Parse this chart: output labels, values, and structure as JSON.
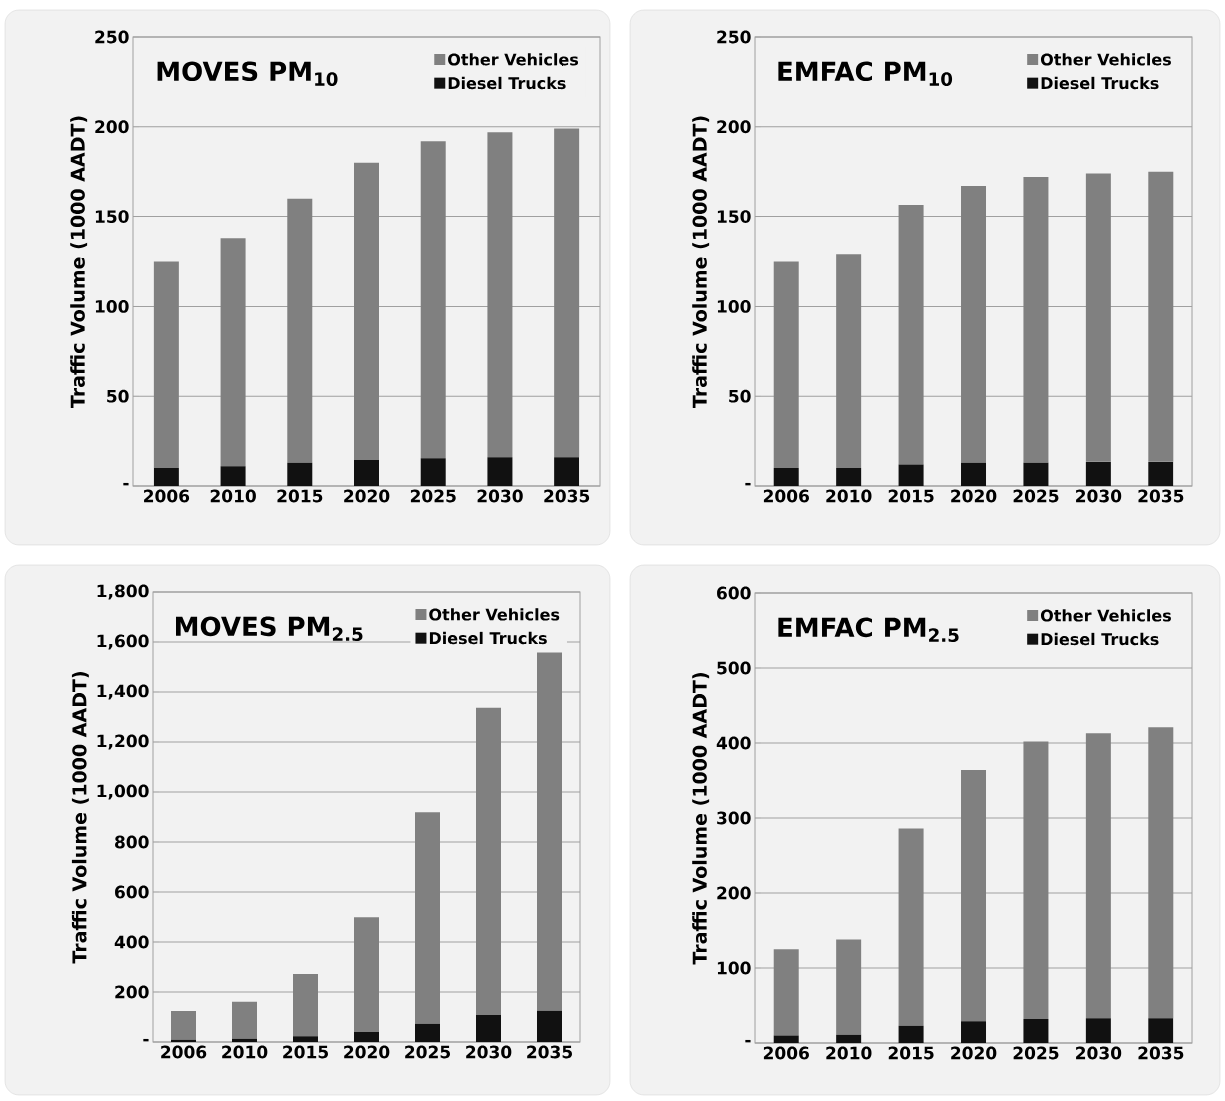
{
  "chart_data": [
    {
      "type": "bar",
      "stacked": true,
      "title": "MOVES PM$_{10}$",
      "ylabel": "Traffic Volume (1000 AADT)",
      "categories": [
        "2006",
        "2010",
        "2015",
        "2020",
        "2025",
        "2030",
        "2035"
      ],
      "series": [
        {
          "name": "Diesel Trucks",
          "color": "#111111",
          "values": [
            10,
            11,
            13,
            14.5,
            15.5,
            16,
            16
          ]
        },
        {
          "name": "Other Vehicles",
          "color": "#808080",
          "values": [
            115,
            127,
            147,
            165.5,
            176.5,
            181,
            183
          ]
        }
      ],
      "ylim": [
        0,
        250
      ],
      "yticks": [
        {
          "value": 0,
          "label": "-"
        },
        50,
        100,
        150,
        200,
        250
      ],
      "grid": "y",
      "legend": "top right"
    },
    {
      "type": "bar",
      "stacked": true,
      "title": "EMFAC PM$_{10}$",
      "ylabel": "Traffic Volume (1000 AADT)",
      "categories": [
        "2006",
        "2010",
        "2015",
        "2020",
        "2025",
        "2030",
        "2035"
      ],
      "series": [
        {
          "name": "Diesel Trucks",
          "color": "#111111",
          "values": [
            10,
            10,
            12,
            13,
            13,
            13.5,
            13.5
          ]
        },
        {
          "name": "Other Vehicles",
          "color": "#808080",
          "values": [
            115,
            119,
            144.5,
            154,
            159,
            160.5,
            161.5
          ]
        }
      ],
      "ylim": [
        0,
        250
      ],
      "yticks": [
        {
          "value": 0,
          "label": "-"
        },
        50,
        100,
        150,
        200,
        250
      ],
      "grid": "y",
      "legend": "top right"
    },
    {
      "type": "bar",
      "stacked": true,
      "title": "MOVES PM$_{2.5}$",
      "ylabel": "Traffic Volume (1000 AADT)",
      "categories": [
        "2006",
        "2010",
        "2015",
        "2020",
        "2025",
        "2030",
        "2035"
      ],
      "series": [
        {
          "name": "Diesel Trucks",
          "color": "#111111",
          "values": [
            9,
            13,
            23,
            40,
            73,
            108,
            125
          ]
        },
        {
          "name": "Other Vehicles",
          "color": "#808080",
          "values": [
            115,
            148,
            249,
            459,
            846,
            1229,
            1435
          ]
        }
      ],
      "ylim": [
        0,
        1800
      ],
      "yticks": [
        {
          "value": 0,
          "label": "-"
        },
        200,
        400,
        600,
        800,
        {
          "value": 1000,
          "label": "1,000"
        },
        {
          "value": 1200,
          "label": "1,200"
        },
        {
          "value": 1400,
          "label": "1,400"
        },
        {
          "value": 1600,
          "label": "1,600"
        },
        {
          "value": 1800,
          "label": "1,800"
        }
      ],
      "grid": "y",
      "legend": "top right"
    },
    {
      "type": "bar",
      "stacked": true,
      "title": "EMFAC PM$_{2.5}$",
      "ylabel": "Traffic Volume (1000 AADT)",
      "categories": [
        "2006",
        "2010",
        "2015",
        "2020",
        "2025",
        "2030",
        "2035"
      ],
      "series": [
        {
          "name": "Diesel Trucks",
          "color": "#111111",
          "values": [
            10,
            11,
            23,
            29,
            32,
            33,
            33
          ]
        },
        {
          "name": "Other Vehicles",
          "color": "#808080",
          "values": [
            115,
            127,
            263,
            335,
            370,
            380,
            388
          ]
        }
      ],
      "ylim": [
        0,
        600
      ],
      "yticks": [
        {
          "value": 0,
          "label": "-"
        },
        100,
        200,
        300,
        400,
        500,
        600
      ],
      "grid": "y",
      "legend": "top right"
    }
  ]
}
